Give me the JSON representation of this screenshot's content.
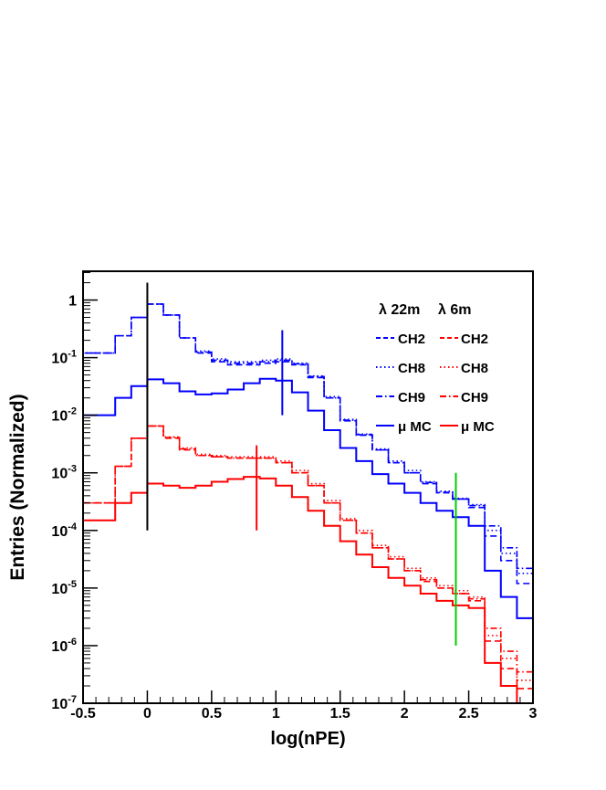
{
  "chart_data": {
    "type": "line",
    "xlabel": "log(nPE)",
    "ylabel": "Entries (Normalized)",
    "xlim": [
      -0.5,
      3
    ],
    "ylim_log10": [
      -7,
      0.5
    ],
    "log_y": true,
    "x_ticks": [
      {
        "v": -0.5,
        "label": "-0.5"
      },
      {
        "v": 0,
        "label": "0"
      },
      {
        "v": 0.5,
        "label": "0.5"
      },
      {
        "v": 1,
        "label": "1"
      },
      {
        "v": 1.5,
        "label": "1.5"
      },
      {
        "v": 2,
        "label": "2"
      },
      {
        "v": 2.5,
        "label": "2.5"
      },
      {
        "v": 3,
        "label": "3"
      }
    ],
    "y_ticks": [
      {
        "exp": 0,
        "base": "1",
        "sup": ""
      },
      {
        "exp": -1,
        "base": "10",
        "sup": "-1"
      },
      {
        "exp": -2,
        "base": "10",
        "sup": "-2"
      },
      {
        "exp": -3,
        "base": "10",
        "sup": "-3"
      },
      {
        "exp": -4,
        "base": "10",
        "sup": "-4"
      },
      {
        "exp": -5,
        "base": "10",
        "sup": "-5"
      },
      {
        "exp": -6,
        "base": "10",
        "sup": "-6"
      },
      {
        "exp": -7,
        "base": "10",
        "sup": "-7"
      }
    ],
    "legend": {
      "placement": "top-right",
      "header_left": "λ 22m",
      "header_right": "λ 6m",
      "rows": [
        {
          "left": "CH2",
          "right": "CH2",
          "style": "dashed"
        },
        {
          "left": "CH8",
          "right": "CH8",
          "style": "dotted"
        },
        {
          "left": "CH9",
          "right": "CH9",
          "style": "dashdot"
        },
        {
          "left": "μ MC",
          "right": "μ MC",
          "style": "solid"
        }
      ]
    },
    "x": [
      -0.5,
      -0.375,
      -0.25,
      -0.125,
      0.0,
      0.125,
      0.25,
      0.375,
      0.5,
      0.625,
      0.75,
      0.875,
      1.0,
      1.125,
      1.25,
      1.375,
      1.5,
      1.625,
      1.75,
      1.875,
      2.0,
      2.125,
      2.25,
      2.375,
      2.5,
      2.625,
      2.75,
      2.875,
      3.0
    ],
    "series": [
      {
        "name": "CH2",
        "color": "#0000ff",
        "style": "dashed",
        "values": [
          0.12,
          0.12,
          0.24,
          0.5,
          0.85,
          0.55,
          0.22,
          0.12,
          0.085,
          0.075,
          0.075,
          0.08,
          0.085,
          0.075,
          0.045,
          0.02,
          0.008,
          0.0045,
          0.0025,
          0.0015,
          0.001,
          0.00065,
          0.00045,
          0.00035,
          0.00025,
          8e-05,
          3e-05,
          1.2e-05,
          6e-06
        ]
      },
      {
        "name": "CH8",
        "color": "#0000ff",
        "style": "dotted",
        "values": [
          0.12,
          0.12,
          0.24,
          0.5,
          0.85,
          0.55,
          0.22,
          0.13,
          0.095,
          0.085,
          0.085,
          0.09,
          0.095,
          0.08,
          0.048,
          0.021,
          0.0085,
          0.0047,
          0.0026,
          0.0016,
          0.0011,
          0.0007,
          0.00048,
          0.00036,
          0.00028,
          0.0001,
          4e-05,
          1.8e-05,
          1e-05
        ]
      },
      {
        "name": "CH9",
        "color": "#0000ff",
        "style": "dashdot",
        "values": [
          0.12,
          0.12,
          0.24,
          0.5,
          0.85,
          0.55,
          0.22,
          0.125,
          0.09,
          0.08,
          0.08,
          0.085,
          0.09,
          0.078,
          0.047,
          0.02,
          0.0082,
          0.0046,
          0.0025,
          0.0015,
          0.001,
          0.00068,
          0.00046,
          0.00035,
          0.00027,
          0.00012,
          5e-05,
          2.2e-05,
          1.2e-05
        ]
      },
      {
        "name": "μ MC",
        "color": "#0000ff",
        "style": "solid",
        "values": [
          0.01,
          0.01,
          0.02,
          0.032,
          0.042,
          0.036,
          0.026,
          0.023,
          0.024,
          0.028,
          0.036,
          0.043,
          0.04,
          0.025,
          0.012,
          0.0055,
          0.0027,
          0.0016,
          0.00095,
          0.00065,
          0.00045,
          0.0003,
          0.00022,
          0.00017,
          0.00012,
          2e-05,
          7e-06,
          3e-06,
          1.2e-06
        ]
      },
      {
        "name": "CH2",
        "color": "#ff0000",
        "style": "dashed",
        "values": [
          0.0003,
          0.0003,
          0.0013,
          0.004,
          0.0065,
          0.004,
          0.0025,
          0.002,
          0.0019,
          0.0018,
          0.0018,
          0.0018,
          0.0015,
          0.001,
          0.0006,
          0.0003,
          0.00015,
          9e-05,
          5e-05,
          3.2e-05,
          2e-05,
          1.3e-05,
          1e-05,
          8e-06,
          6e-06,
          1.2e-06,
          4e-07,
          1.8e-07,
          1e-07
        ]
      },
      {
        "name": "CH8",
        "color": "#ff0000",
        "style": "dotted",
        "values": [
          0.0003,
          0.0003,
          0.0013,
          0.004,
          0.0065,
          0.0042,
          0.0027,
          0.0021,
          0.002,
          0.0019,
          0.0019,
          0.0019,
          0.0016,
          0.0011,
          0.00065,
          0.00033,
          0.00016,
          0.0001,
          5.5e-05,
          3.5e-05,
          2.2e-05,
          1.5e-05,
          1.1e-05,
          9e-06,
          7e-06,
          1.5e-06,
          6e-07,
          2.5e-07,
          1.3e-07
        ]
      },
      {
        "name": "CH9",
        "color": "#ff0000",
        "style": "dashdot",
        "values": [
          0.0003,
          0.0003,
          0.0013,
          0.004,
          0.0065,
          0.0041,
          0.0026,
          0.002,
          0.0019,
          0.0018,
          0.0018,
          0.0018,
          0.0015,
          0.001,
          0.0006,
          0.0003,
          0.00015,
          9e-05,
          5e-05,
          3.2e-05,
          2e-05,
          1.4e-05,
          1e-05,
          8e-06,
          6.5e-06,
          2e-06,
          8e-07,
          3.5e-07,
          1.6e-07
        ]
      },
      {
        "name": "μ MC",
        "color": "#ff0000",
        "style": "solid",
        "values": [
          0.00015,
          0.00015,
          0.0003,
          0.00045,
          0.00065,
          0.0006,
          0.00055,
          0.0006,
          0.0007,
          0.00078,
          0.00085,
          0.0008,
          0.0006,
          0.00038,
          0.00022,
          0.00012,
          6.5e-05,
          3.8e-05,
          2.3e-05,
          1.5e-05,
          1.1e-05,
          8e-06,
          6e-06,
          5e-06,
          4.5e-06,
          5e-07,
          2e-07,
          1e-07,
          1e-07
        ]
      }
    ],
    "markers": [
      {
        "x": 0.0,
        "y_low": 0.0001,
        "y_high": 2.0,
        "color": "#000000"
      },
      {
        "x": 1.05,
        "y_low": 0.01,
        "y_high": 0.3,
        "color": "#0000ff"
      },
      {
        "x": 0.85,
        "y_low": 0.0001,
        "y_high": 0.003,
        "color": "#ff0000"
      },
      {
        "x": 2.4,
        "y_low": 1e-06,
        "y_high": 0.001,
        "color": "#00cc00"
      }
    ]
  }
}
